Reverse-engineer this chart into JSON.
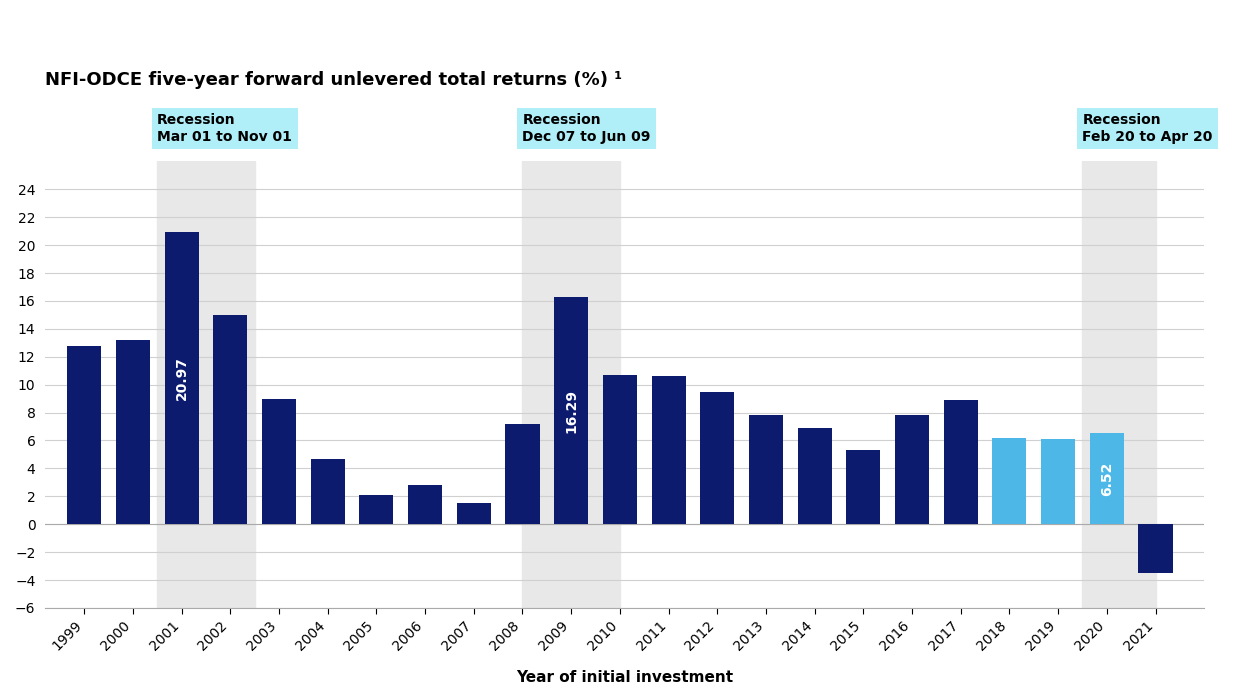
{
  "title": "NFI-ODCE five-year forward unlevered total returns (%) ¹",
  "xlabel": "Year of initial investment",
  "years": [
    1999,
    2000,
    2001,
    2002,
    2003,
    2004,
    2005,
    2006,
    2007,
    2008,
    2009,
    2010,
    2011,
    2012,
    2013,
    2014,
    2015,
    2016,
    2017,
    2018,
    2019,
    2020,
    2021
  ],
  "values": [
    12.8,
    13.2,
    20.97,
    15.0,
    9.0,
    4.7,
    2.1,
    2.8,
    1.5,
    7.2,
    16.29,
    10.7,
    10.6,
    9.5,
    7.8,
    6.9,
    5.3,
    7.8,
    8.9,
    6.2,
    6.1,
    6.52,
    -3.5
  ],
  "bar_colors": [
    "#0d1b6e",
    "#0d1b6e",
    "#0d1b6e",
    "#0d1b6e",
    "#0d1b6e",
    "#0d1b6e",
    "#0d1b6e",
    "#0d1b6e",
    "#0d1b6e",
    "#0d1b6e",
    "#0d1b6e",
    "#0d1b6e",
    "#0d1b6e",
    "#0d1b6e",
    "#0d1b6e",
    "#0d1b6e",
    "#0d1b6e",
    "#0d1b6e",
    "#0d1b6e",
    "#4db8e8",
    "#4db8e8",
    "#4db8e8",
    "#0d1b6e"
  ],
  "labeled_bars": {
    "2001": "20.97",
    "2009": "16.29",
    "2020": "6.52"
  },
  "ylim": [
    -6,
    26
  ],
  "yticks": [
    -6,
    -4,
    -2,
    0,
    2,
    4,
    6,
    8,
    10,
    12,
    14,
    16,
    18,
    20,
    22,
    24
  ],
  "recession_bands": [
    {
      "x_center": 2001,
      "x_start": 2000.5,
      "x_end": 2002.5,
      "label1": "Recession",
      "label2": "Mar 01 to Nov 01"
    },
    {
      "x_center": 2008.5,
      "x_start": 2008.0,
      "x_end": 2010.0,
      "label1": "Recession",
      "label2": "Dec 07 to Jun 09"
    },
    {
      "x_center": 2020,
      "x_start": 2019.5,
      "x_end": 2021.0,
      "label1": "Recession",
      "label2": "Feb 20 to Apr 20"
    }
  ],
  "recession_box_color": "#b0eef8",
  "recession_band_color": "#e8e8e8",
  "background_color": "#ffffff",
  "grid_color": "#d0d0d0",
  "title_fontsize": 13,
  "axis_label_fontsize": 11,
  "tick_fontsize": 10,
  "xlim_left": 1998.2,
  "xlim_right": 2022.0
}
